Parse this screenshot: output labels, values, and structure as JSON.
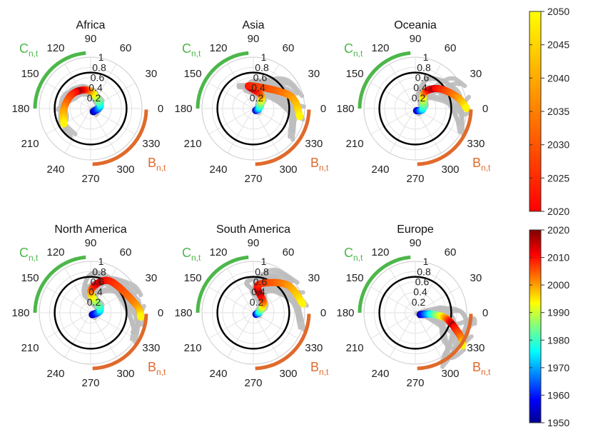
{
  "chart_data": {
    "type": "polar-trajectory",
    "panels": [
      {
        "title": "Africa",
        "trajectory": [
          [
            -50,
            0.08
          ],
          [
            20,
            0.2
          ],
          [
            95,
            0.35
          ],
          [
            140,
            0.45
          ],
          [
            180,
            0.52
          ],
          [
            210,
            0.6
          ]
        ]
      },
      {
        "title": "Asia",
        "trajectory": [
          [
            -40,
            0.06
          ],
          [
            10,
            0.12
          ],
          [
            60,
            0.3
          ],
          [
            100,
            0.45
          ],
          [
            20,
            0.75
          ],
          [
            -10,
            0.92
          ]
        ]
      },
      {
        "title": "Oceania",
        "trajectory": [
          [
            -60,
            0.05
          ],
          [
            0,
            0.15
          ],
          [
            60,
            0.35
          ],
          [
            40,
            0.6
          ],
          [
            15,
            0.85
          ],
          [
            0,
            1.0
          ]
        ]
      },
      {
        "title": "North America",
        "trajectory": [
          [
            -50,
            0.05
          ],
          [
            20,
            0.2
          ],
          [
            90,
            0.42
          ],
          [
            60,
            0.72
          ],
          [
            10,
            0.9
          ],
          [
            -5,
            0.98
          ]
        ]
      },
      {
        "title": "South America",
        "trajectory": [
          [
            -30,
            0.06
          ],
          [
            10,
            0.12
          ],
          [
            45,
            0.28
          ],
          [
            80,
            0.55
          ],
          [
            40,
            0.85
          ],
          [
            10,
            0.98
          ]
        ]
      },
      {
        "title": "Europe",
        "trajectory": [
          [
            -20,
            0.1
          ],
          [
            -5,
            0.3
          ],
          [
            -10,
            0.6
          ],
          [
            -22,
            0.85
          ],
          [
            -30,
            1.05
          ],
          [
            -35,
            1.12
          ]
        ]
      }
    ],
    "theta_ticks": [
      "0",
      "30",
      "60",
      "90",
      "120",
      "150",
      "180",
      "210",
      "240",
      "270",
      "300",
      "330"
    ],
    "r_ticks": [
      "0.2",
      "0.4",
      "0.6",
      "0.8",
      "1"
    ],
    "arc_labels": {
      "c_main": "C",
      "c_sub": "n,t",
      "b_main": "B",
      "b_sub": "n,t"
    },
    "colors": {
      "c_arc": "#4cb74a",
      "b_arc": "#e06a2c",
      "gray": "#bdbdbd",
      "circle": "#000000"
    },
    "colorbars": [
      {
        "name": "projection",
        "colormap": "autumn",
        "range": [
          2020,
          2050
        ],
        "ticks": [
          "2050",
          "2045",
          "2040",
          "2035",
          "2030",
          "2025",
          "2020"
        ]
      },
      {
        "name": "historical",
        "colormap": "jet",
        "range": [
          1950,
          2020
        ],
        "ticks": [
          "2020",
          "2010",
          "2000",
          "1990",
          "1980",
          "1970",
          "1960",
          "1950"
        ]
      }
    ]
  }
}
